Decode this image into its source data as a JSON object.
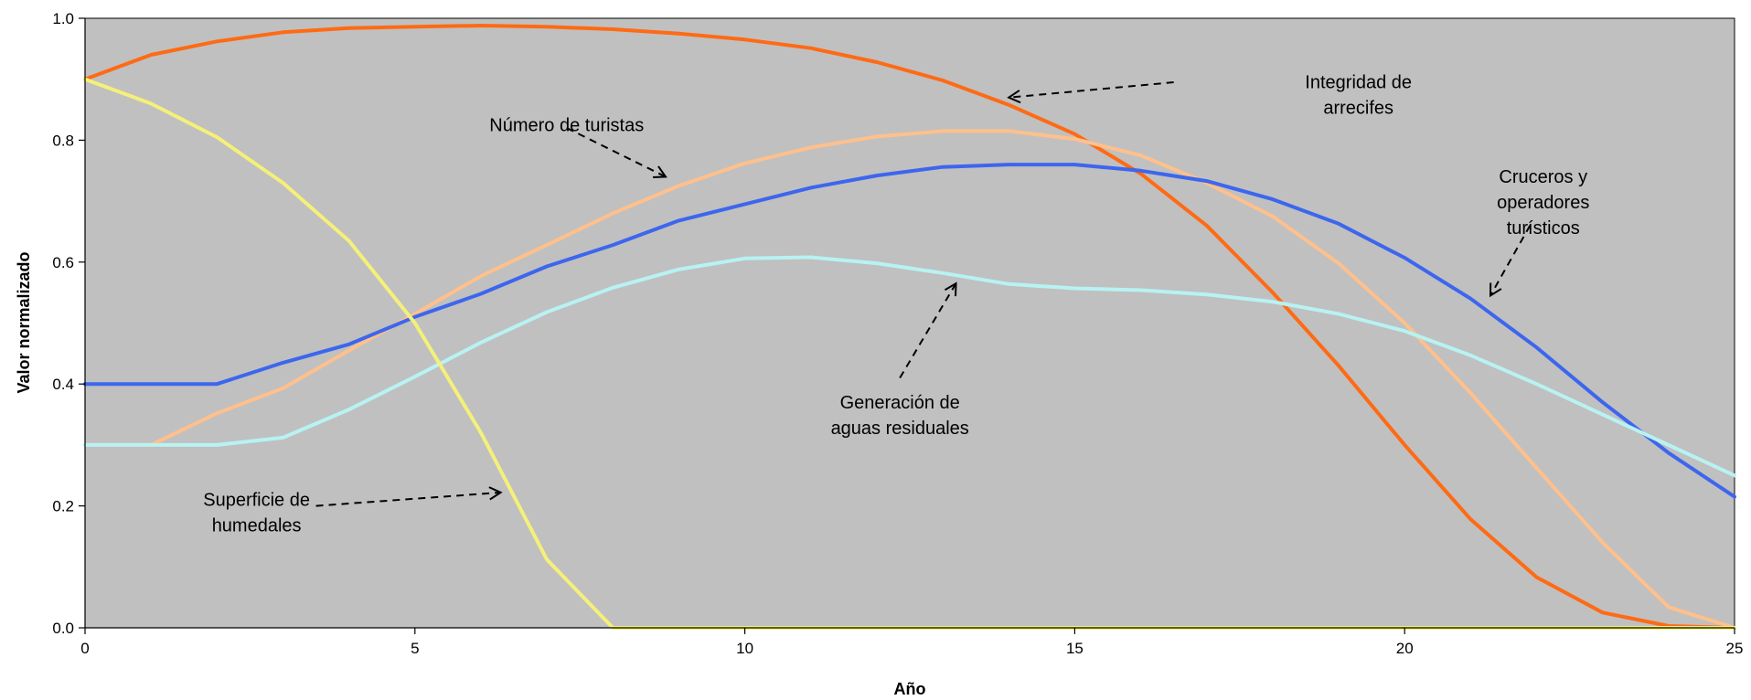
{
  "chart_data": {
    "type": "line",
    "xlabel": "Año",
    "ylabel": "Valor normalizado",
    "xlim": [
      0,
      25
    ],
    "ylim": [
      0,
      1
    ],
    "x_ticks": [
      "0",
      "5",
      "10",
      "15",
      "20",
      "25"
    ],
    "y_ticks": [
      "0.0",
      "0.2",
      "0.4",
      "0.6",
      "0.8",
      "1.0"
    ],
    "plot_background": "#c0c0c0",
    "grid": false,
    "x": [
      0,
      1,
      2,
      3,
      4,
      5,
      6,
      7,
      8,
      9,
      10,
      11,
      12,
      13,
      14,
      15,
      16,
      17,
      18,
      19,
      20,
      21,
      22,
      23,
      24,
      25
    ],
    "series": [
      {
        "key": "arrecifes",
        "color": "#ff6a14",
        "values": [
          0.9,
          0.94,
          0.962,
          0.977,
          0.984,
          0.986,
          0.988,
          0.986,
          0.982,
          0.975,
          0.965,
          0.951,
          0.928,
          0.898,
          0.858,
          0.81,
          0.745,
          0.66,
          0.55,
          0.43,
          0.3,
          0.178,
          0.083,
          0.025,
          0.003,
          0.0
        ]
      },
      {
        "key": "turistas",
        "color": "#ffc08c",
        "values": [
          0.3,
          0.3,
          0.352,
          0.393,
          0.455,
          0.515,
          0.577,
          0.628,
          0.68,
          0.725,
          0.762,
          0.788,
          0.806,
          0.815,
          0.815,
          0.802,
          0.775,
          0.73,
          0.675,
          0.598,
          0.5,
          0.385,
          0.262,
          0.14,
          0.034,
          0.0
        ]
      },
      {
        "key": "cruceros",
        "color": "#3d66ee",
        "values": [
          0.4,
          0.4,
          0.4,
          0.435,
          0.465,
          0.51,
          0.548,
          0.593,
          0.628,
          0.668,
          0.695,
          0.722,
          0.742,
          0.756,
          0.76,
          0.76,
          0.75,
          0.733,
          0.703,
          0.663,
          0.607,
          0.54,
          0.46,
          0.37,
          0.287,
          0.215
        ]
      },
      {
        "key": "aguas",
        "color": "#b8f2f2",
        "values": [
          0.3,
          0.3,
          0.3,
          0.312,
          0.358,
          0.412,
          0.468,
          0.518,
          0.558,
          0.588,
          0.606,
          0.608,
          0.598,
          0.582,
          0.564,
          0.557,
          0.554,
          0.547,
          0.535,
          0.515,
          0.487,
          0.447,
          0.4,
          0.35,
          0.3,
          0.25
        ]
      },
      {
        "key": "humedales",
        "color": "#f4f07a",
        "values": [
          0.9,
          0.86,
          0.805,
          0.73,
          0.635,
          0.5,
          0.32,
          0.112,
          0.0,
          0.0,
          0.0,
          0.0,
          0.0,
          0.0,
          0.0,
          0.0,
          0.0,
          0.0,
          0.0,
          0.0,
          0.0,
          0.0,
          0.0,
          0.0,
          0.0,
          0.0
        ]
      }
    ],
    "annotations": [
      {
        "key": "arrecifes",
        "lines": [
          "Integridad de",
          "arrecifes"
        ],
        "arrow_from": [
          16.5,
          0.895
        ],
        "arrow_to": [
          14.0,
          0.87
        ]
      },
      {
        "key": "turistas",
        "lines": [
          "Número de turistas"
        ],
        "arrow_from": [
          7.3,
          0.82
        ],
        "arrow_to": [
          8.8,
          0.74
        ]
      },
      {
        "key": "cruceros",
        "lines": [
          "Cruceros y",
          "operadores",
          "turísticos"
        ],
        "arrow_from": [
          21.9,
          0.66
        ],
        "arrow_to": [
          21.3,
          0.545
        ]
      },
      {
        "key": "aguas",
        "lines": [
          "Generación de",
          "aguas residuales"
        ],
        "arrow_from": [
          12.35,
          0.41
        ],
        "arrow_to": [
          13.2,
          0.565
        ]
      },
      {
        "key": "humedales",
        "lines": [
          "Superficie de",
          "humedales"
        ],
        "arrow_from": [
          3.5,
          0.2
        ],
        "arrow_to": [
          6.3,
          0.222
        ]
      }
    ]
  }
}
